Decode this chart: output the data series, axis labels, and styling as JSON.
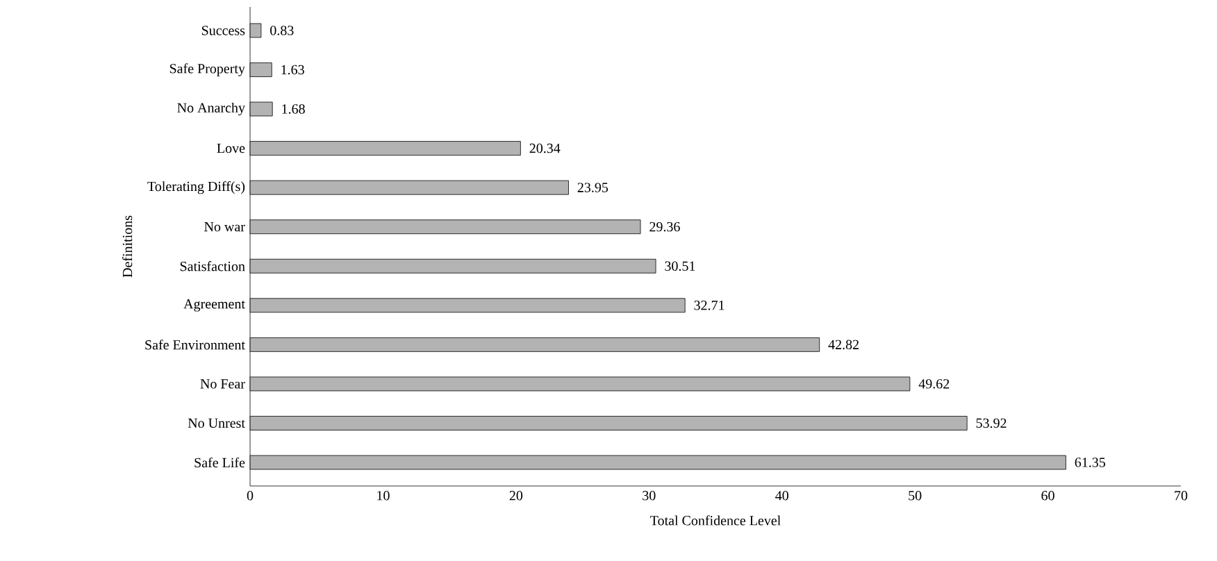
{
  "chart_data": {
    "type": "bar",
    "orientation": "horizontal",
    "xlabel": "Total Confidence Level",
    "ylabel": "Definitions",
    "categories": [
      "Success",
      "Safe Property",
      "No Anarchy",
      "Love",
      "Tolerating Diff(s)",
      "No war",
      "Satisfaction",
      "Agreement",
      "Safe Environment",
      "No Fear",
      "No Unrest",
      "Safe Life"
    ],
    "values": [
      0.83,
      1.63,
      1.68,
      20.34,
      23.95,
      29.36,
      30.51,
      32.71,
      42.82,
      49.62,
      53.92,
      61.35
    ],
    "color": "#b3b3b3",
    "data_labels": true,
    "xlim": [
      0,
      70
    ],
    "xticks": [
      0,
      10,
      20,
      30,
      40,
      50,
      60,
      70
    ]
  }
}
